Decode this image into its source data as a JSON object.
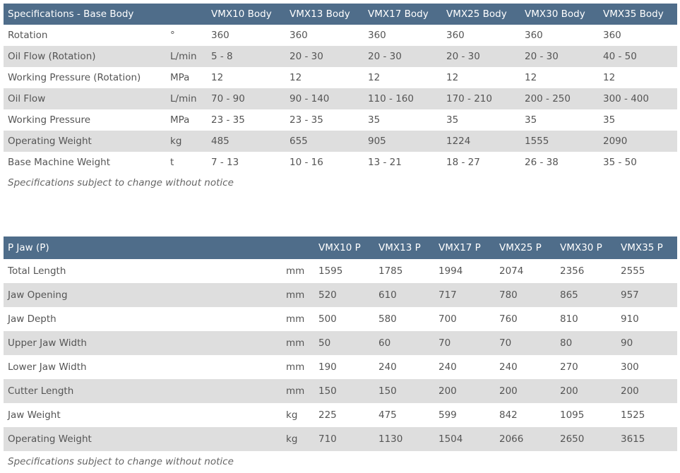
{
  "base_body": {
    "header": [
      "Specifications - Base Body",
      "",
      "VMX10 Body",
      "VMX13 Body",
      "VMX17 Body",
      "VMX25 Body",
      "VMX30 Body",
      "VMX35 Body"
    ],
    "rows": [
      [
        "Rotation",
        "°",
        "360",
        "360",
        "360",
        "360",
        "360",
        "360"
      ],
      [
        "Oil Flow (Rotation)",
        "L/min",
        "5 - 8",
        "20 - 30",
        "20 - 30",
        "20 - 30",
        "20 - 30",
        "40 - 50"
      ],
      [
        "Working Pressure (Rotation)",
        "MPa",
        "12",
        "12",
        "12",
        "12",
        "12",
        "12"
      ],
      [
        "Oil Flow",
        "L/min",
        "70 - 90",
        "90 - 140",
        "110 - 160",
        "170 - 210",
        "200 - 250",
        "300 - 400"
      ],
      [
        "Working Pressure",
        "MPa",
        "23 - 35",
        "23 - 35",
        "35",
        "35",
        "35",
        "35"
      ],
      [
        "Operating Weight",
        "kg",
        "485",
        "655",
        "905",
        "1224",
        "1555",
        "2090"
      ],
      [
        "Base Machine Weight",
        "t",
        "7 - 13",
        "10 - 16",
        "13 - 21",
        "18 - 27",
        "26 - 38",
        "35 - 50"
      ]
    ],
    "note": "Specifications subject to change without notice"
  },
  "p_jaw": {
    "header": [
      "P Jaw (P)",
      "",
      "VMX10 P",
      "VMX13 P",
      "VMX17 P",
      "VMX25 P",
      "VMX30 P",
      "VMX35 P"
    ],
    "rows": [
      [
        "Total Length",
        "mm",
        "1595",
        "1785",
        "1994",
        "2074",
        "2356",
        "2555"
      ],
      [
        "Jaw Opening",
        "mm",
        "520",
        "610",
        "717",
        "780",
        "865",
        "957"
      ],
      [
        "Jaw Depth",
        "mm",
        "500",
        "580",
        "700",
        "760",
        "810",
        "910"
      ],
      [
        "Upper Jaw Width",
        "mm",
        "50",
        "60",
        "70",
        "70",
        "80",
        "90"
      ],
      [
        "Lower Jaw Width",
        "mm",
        "190",
        "240",
        "240",
        "240",
        "270",
        "300"
      ],
      [
        "Cutter Length",
        "mm",
        "150",
        "150",
        "200",
        "200",
        "200",
        "200"
      ],
      [
        "Jaw Weight",
        "kg",
        "225",
        "475",
        "599",
        "842",
        "1095",
        "1525"
      ],
      [
        "Operating Weight",
        "kg",
        "710",
        "1130",
        "1504",
        "2066",
        "2650",
        "3615"
      ]
    ],
    "note": "Specifications subject to change without notice"
  },
  "colors": {
    "header_bg": "#4f6d8a",
    "alt_row_bg": "#dedede",
    "text": "#555555"
  }
}
